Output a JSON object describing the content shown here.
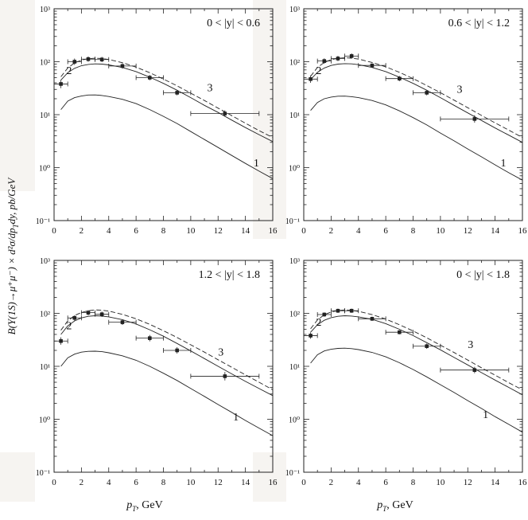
{
  "figure": {
    "ylabel": "B(Υ(1S)→μ⁺μ⁻) × d²σ/dp",
    "ylabel_sub": "T",
    "ylabel_tail": "dy, pb/GeV",
    "xlabel_main": "p",
    "xlabel_sub": "T",
    "xlabel_tail": ", GeV"
  },
  "chart_data": [
    {
      "type": "line",
      "title": "0 < |y| < 0.6",
      "xlim": [
        0,
        16
      ],
      "ylim": [
        0.1,
        1000
      ],
      "yscale": "log",
      "xticks": [
        "0",
        "2",
        "4",
        "6",
        "8",
        "10",
        "12",
        "14",
        "16"
      ],
      "yticks": [
        "10⁻¹",
        "10⁰",
        "10¹",
        "10²",
        "10³"
      ],
      "curve_labels": [
        {
          "text": "1",
          "x": 14.8,
          "y": 1.05
        },
        {
          "text": "2",
          "x": 1.1,
          "y": 58
        },
        {
          "text": "3",
          "x": 11.4,
          "y": 28
        }
      ],
      "series": [
        {
          "style": "solid",
          "x": [
            0.5,
            1,
            1.5,
            2,
            2.5,
            3,
            3.5,
            4,
            5,
            6,
            7,
            8,
            9,
            10,
            11,
            12,
            13,
            14,
            15,
            16
          ],
          "values": [
            12.5,
            18,
            21,
            22.5,
            23.5,
            23.6,
            23,
            22,
            19.5,
            16.2,
            12.5,
            9.3,
            6.8,
            4.8,
            3.4,
            2.4,
            1.7,
            1.2,
            0.86,
            0.62
          ]
        },
        {
          "style": "solid",
          "x": [
            0.5,
            1,
            1.5,
            2,
            2.5,
            3,
            3.5,
            4,
            5,
            6,
            7,
            8,
            9,
            10,
            11,
            12,
            13,
            14,
            15,
            16
          ],
          "values": [
            45,
            62,
            75,
            84,
            89,
            91,
            90,
            87,
            78,
            65,
            51,
            39,
            29,
            21,
            15,
            11,
            7.9,
            5.7,
            4.2,
            3.1
          ]
        },
        {
          "style": "dashed",
          "x": [
            0.5,
            1,
            1.5,
            2,
            2.5,
            3,
            3.5,
            4,
            5,
            6,
            7,
            8,
            9,
            10,
            11,
            12,
            13,
            14,
            15,
            16
          ],
          "values": [
            52,
            76,
            95,
            107,
            114,
            117,
            115,
            110,
            96,
            79,
            62,
            47,
            35,
            25.5,
            18.5,
            13.3,
            9.6,
            6.9,
            5.0,
            3.7
          ]
        }
      ],
      "points": [
        {
          "x": 0.5,
          "y": 38,
          "xerr": 0.5,
          "yerr": 0.08
        },
        {
          "x": 1.5,
          "y": 100,
          "xerr": 0.5,
          "yerr": 0.06
        },
        {
          "x": 2.5,
          "y": 112,
          "xerr": 0.5,
          "yerr": 0.05
        },
        {
          "x": 3.5,
          "y": 110,
          "xerr": 0.5,
          "yerr": 0.05
        },
        {
          "x": 5,
          "y": 83,
          "xerr": 1,
          "yerr": 0.05
        },
        {
          "x": 7,
          "y": 50,
          "xerr": 1,
          "yerr": 0.05
        },
        {
          "x": 9,
          "y": 26,
          "xerr": 1,
          "yerr": 0.05
        },
        {
          "x": 12.5,
          "y": 10.5,
          "xerr": 2.5,
          "yerr": 0.06
        }
      ]
    },
    {
      "type": "line",
      "title": "0.6 < |y| < 1.2",
      "xlim": [
        0,
        16
      ],
      "ylim": [
        0.1,
        1000
      ],
      "yscale": "log",
      "xticks": [
        "0",
        "2",
        "4",
        "6",
        "8",
        "10",
        "12",
        "14",
        "16"
      ],
      "yticks": [
        "10⁻¹",
        "10⁰",
        "10¹",
        "10²",
        "10³"
      ],
      "curve_labels": [
        {
          "text": "1",
          "x": 14.6,
          "y": 1.05
        },
        {
          "text": "2",
          "x": 1.1,
          "y": 58
        },
        {
          "text": "3",
          "x": 11.4,
          "y": 26
        }
      ],
      "series": [
        {
          "style": "solid",
          "x": [
            0.5,
            1,
            1.5,
            2,
            2.5,
            3,
            3.5,
            4,
            5,
            6,
            7,
            8,
            9,
            10,
            11,
            12,
            13,
            14,
            15,
            16
          ],
          "values": [
            12,
            17,
            20,
            21.5,
            22.3,
            22.4,
            21.9,
            21,
            18.5,
            15.3,
            11.8,
            8.8,
            6.4,
            4.5,
            3.2,
            2.25,
            1.6,
            1.13,
            0.8,
            0.58
          ]
        },
        {
          "style": "solid",
          "x": [
            0.5,
            1,
            1.5,
            2,
            2.5,
            3,
            3.5,
            4,
            5,
            6,
            7,
            8,
            9,
            10,
            11,
            12,
            13,
            14,
            15,
            16
          ],
          "values": [
            46,
            63,
            76,
            85,
            90,
            92,
            91,
            88,
            78,
            65,
            51,
            39,
            29,
            21,
            15,
            10.8,
            7.8,
            5.6,
            4.1,
            3.0
          ]
        },
        {
          "style": "dashed",
          "x": [
            0.5,
            1,
            1.5,
            2,
            2.5,
            3,
            3.5,
            4,
            5,
            6,
            7,
            8,
            9,
            10,
            11,
            12,
            13,
            14,
            15,
            16
          ],
          "values": [
            53,
            78,
            97,
            109,
            116,
            119,
            117,
            112,
            97,
            80,
            63,
            48,
            35.5,
            26,
            18.8,
            13.5,
            9.7,
            7.0,
            5.1,
            3.7
          ]
        }
      ],
      "points": [
        {
          "x": 0.5,
          "y": 47,
          "xerr": 0.5,
          "yerr": 0.07
        },
        {
          "x": 1.5,
          "y": 103,
          "xerr": 0.5,
          "yerr": 0.05
        },
        {
          "x": 2.5,
          "y": 115,
          "xerr": 0.5,
          "yerr": 0.05
        },
        {
          "x": 3.5,
          "y": 128,
          "xerr": 0.5,
          "yerr": 0.05
        },
        {
          "x": 5,
          "y": 85,
          "xerr": 1,
          "yerr": 0.04
        },
        {
          "x": 7,
          "y": 48,
          "xerr": 1,
          "yerr": 0.05
        },
        {
          "x": 9,
          "y": 26,
          "xerr": 1,
          "yerr": 0.05
        },
        {
          "x": 12.5,
          "y": 8.3,
          "xerr": 2.5,
          "yerr": 0.07
        }
      ]
    },
    {
      "type": "line",
      "title": "1.2 < |y| < 1.8",
      "xlim": [
        0,
        16
      ],
      "ylim": [
        0.1,
        1000
      ],
      "yscale": "log",
      "xticks": [
        "0",
        "2",
        "4",
        "6",
        "8",
        "10",
        "12",
        "14",
        "16"
      ],
      "yticks": [
        "10⁻¹",
        "10⁰",
        "10¹",
        "10²",
        "10³"
      ],
      "curve_labels": [
        {
          "text": "1",
          "x": 13.3,
          "y": 0.95
        },
        {
          "text": "2",
          "x": 1.1,
          "y": 50
        },
        {
          "text": "3",
          "x": 12.2,
          "y": 16
        }
      ],
      "series": [
        {
          "style": "solid",
          "x": [
            0.5,
            1,
            1.5,
            2,
            2.5,
            3,
            3.5,
            4,
            5,
            6,
            7,
            8,
            9,
            10,
            11,
            12,
            13,
            14,
            15,
            16
          ],
          "values": [
            10,
            14.5,
            17,
            18.5,
            19.2,
            19.3,
            18.9,
            18,
            15.8,
            13,
            10,
            7.4,
            5.4,
            3.8,
            2.7,
            1.9,
            1.35,
            0.95,
            0.68,
            0.49
          ]
        },
        {
          "style": "solid",
          "x": [
            0.5,
            1,
            1.5,
            2,
            2.5,
            3,
            3.5,
            4,
            5,
            6,
            7,
            8,
            9,
            10,
            11,
            12,
            13,
            14,
            15,
            16
          ],
          "values": [
            40,
            58,
            72,
            82,
            88,
            90,
            89,
            86,
            76,
            63,
            49,
            37,
            27,
            19.5,
            14,
            10,
            7.2,
            5.2,
            3.8,
            2.8
          ]
        },
        {
          "style": "dashed",
          "x": [
            0.5,
            1,
            1.5,
            2,
            2.5,
            3,
            3.5,
            4,
            5,
            6,
            7,
            8,
            9,
            10,
            11,
            12,
            13,
            14,
            15,
            16
          ],
          "values": [
            48,
            72,
            91,
            104,
            112,
            116,
            115,
            110,
            96,
            79,
            62,
            47,
            35,
            25.5,
            18.5,
            13.3,
            9.6,
            6.9,
            5.0,
            3.6
          ]
        }
      ],
      "points": [
        {
          "x": 0.5,
          "y": 30,
          "xerr": 0.5,
          "yerr": 0.07
        },
        {
          "x": 1.5,
          "y": 82,
          "xerr": 0.5,
          "yerr": 0.05
        },
        {
          "x": 2.5,
          "y": 103,
          "xerr": 0.5,
          "yerr": 0.05
        },
        {
          "x": 3.5,
          "y": 96,
          "xerr": 0.5,
          "yerr": 0.05
        },
        {
          "x": 5,
          "y": 68,
          "xerr": 1,
          "yerr": 0.05
        },
        {
          "x": 7,
          "y": 34,
          "xerr": 1,
          "yerr": 0.06
        },
        {
          "x": 9,
          "y": 20,
          "xerr": 1,
          "yerr": 0.06
        },
        {
          "x": 12.5,
          "y": 6.5,
          "xerr": 2.5,
          "yerr": 0.08
        }
      ]
    },
    {
      "type": "line",
      "title": "0 < |y| < 1.8",
      "xlim": [
        0,
        16
      ],
      "ylim": [
        0.1,
        1000
      ],
      "yscale": "log",
      "xticks": [
        "0",
        "2",
        "4",
        "6",
        "8",
        "10",
        "12",
        "14",
        "16"
      ],
      "yticks": [
        "10⁻¹",
        "10⁰",
        "10¹",
        "10²",
        "10³"
      ],
      "curve_labels": [
        {
          "text": "1",
          "x": 13.3,
          "y": 1.05
        },
        {
          "text": "2",
          "x": 1.1,
          "y": 58
        },
        {
          "text": "3",
          "x": 12.2,
          "y": 22
        }
      ],
      "series": [
        {
          "style": "solid",
          "x": [
            0.5,
            1,
            1.5,
            2,
            2.5,
            3,
            3.5,
            4,
            5,
            6,
            7,
            8,
            9,
            10,
            11,
            12,
            13,
            14,
            15,
            16
          ],
          "values": [
            11.5,
            16.5,
            19.5,
            21,
            21.8,
            22,
            21.6,
            20.7,
            18.3,
            15.1,
            11.7,
            8.7,
            6.3,
            4.5,
            3.2,
            2.25,
            1.6,
            1.12,
            0.8,
            0.57
          ]
        },
        {
          "style": "solid",
          "x": [
            0.5,
            1,
            1.5,
            2,
            2.5,
            3,
            3.5,
            4,
            5,
            6,
            7,
            8,
            9,
            10,
            11,
            12,
            13,
            14,
            15,
            16
          ],
          "values": [
            44,
            61,
            74,
            83,
            88,
            90,
            89,
            86,
            77,
            64,
            50,
            38,
            28,
            20.5,
            14.7,
            10.6,
            7.6,
            5.5,
            4.0,
            2.9
          ]
        },
        {
          "style": "dashed",
          "x": [
            0.5,
            1,
            1.5,
            2,
            2.5,
            3,
            3.5,
            4,
            5,
            6,
            7,
            8,
            9,
            10,
            11,
            12,
            13,
            14,
            15,
            16
          ],
          "values": [
            51,
            75,
            94,
            106,
            113,
            116,
            114,
            109,
            95,
            78,
            61,
            46.5,
            34.5,
            25,
            18.2,
            13.1,
            9.4,
            6.8,
            4.9,
            3.6
          ]
        }
      ],
      "points": [
        {
          "x": 0.5,
          "y": 38,
          "xerr": 0.5,
          "yerr": 0.06
        },
        {
          "x": 1.5,
          "y": 95,
          "xerr": 0.5,
          "yerr": 0.04
        },
        {
          "x": 2.5,
          "y": 112,
          "xerr": 0.5,
          "yerr": 0.04
        },
        {
          "x": 3.5,
          "y": 112,
          "xerr": 0.5,
          "yerr": 0.04
        },
        {
          "x": 5,
          "y": 79,
          "xerr": 1,
          "yerr": 0.04
        },
        {
          "x": 7,
          "y": 44,
          "xerr": 1,
          "yerr": 0.04
        },
        {
          "x": 9,
          "y": 24,
          "xerr": 1,
          "yerr": 0.05
        },
        {
          "x": 12.5,
          "y": 8.5,
          "xerr": 2.5,
          "yerr": 0.06
        }
      ]
    }
  ]
}
